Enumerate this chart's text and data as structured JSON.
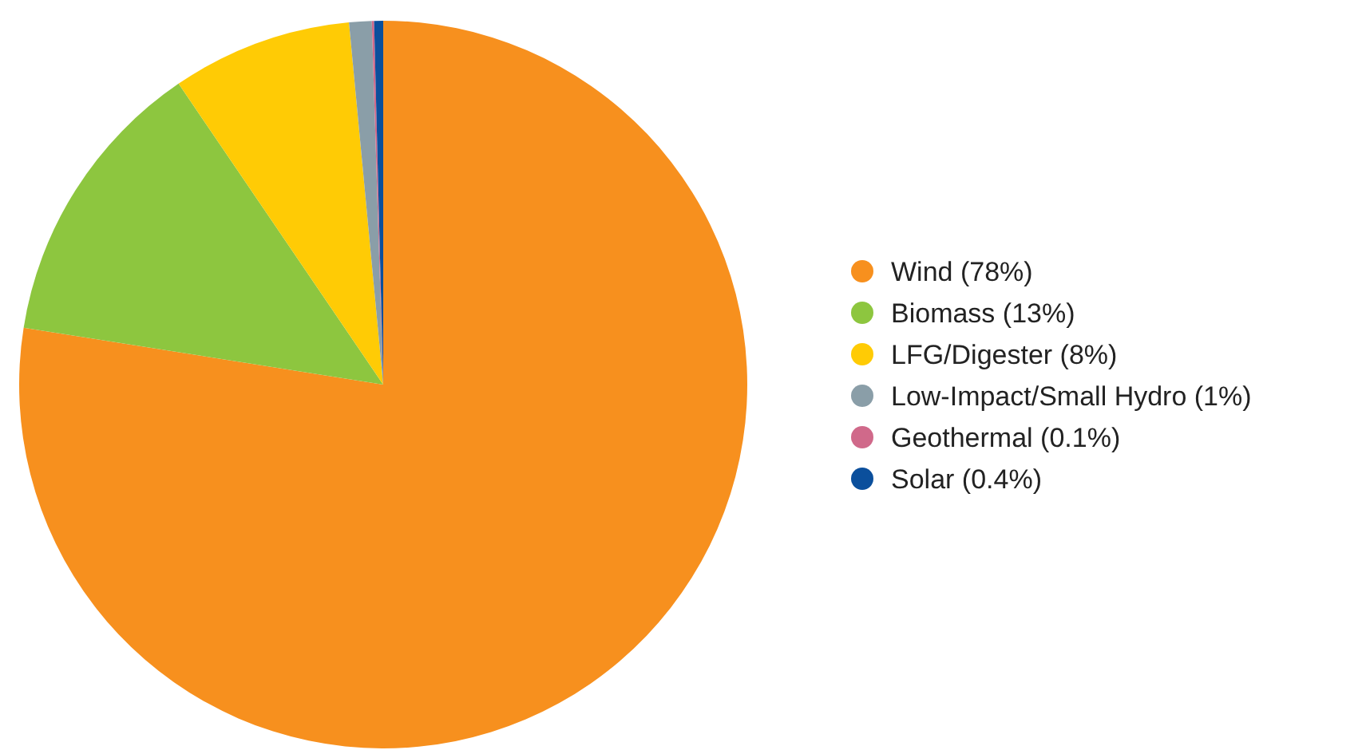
{
  "chart_data": {
    "type": "pie",
    "legend": "right",
    "categories": [
      "Wind (78%)",
      "Biomass (13%)",
      "LFG/Digester (8%)",
      "Low-Impact/Small Hydro (1%)",
      "Geothermal (0.1%)",
      "Solar (0.4%)"
    ],
    "values": [
      77.5,
      13,
      8,
      1,
      0.1,
      0.4
    ],
    "colors": [
      "#f7901e",
      "#8dc63f",
      "#ffcb05",
      "#8a9ea8",
      "#d0698a",
      "#0b4f9c"
    ]
  }
}
